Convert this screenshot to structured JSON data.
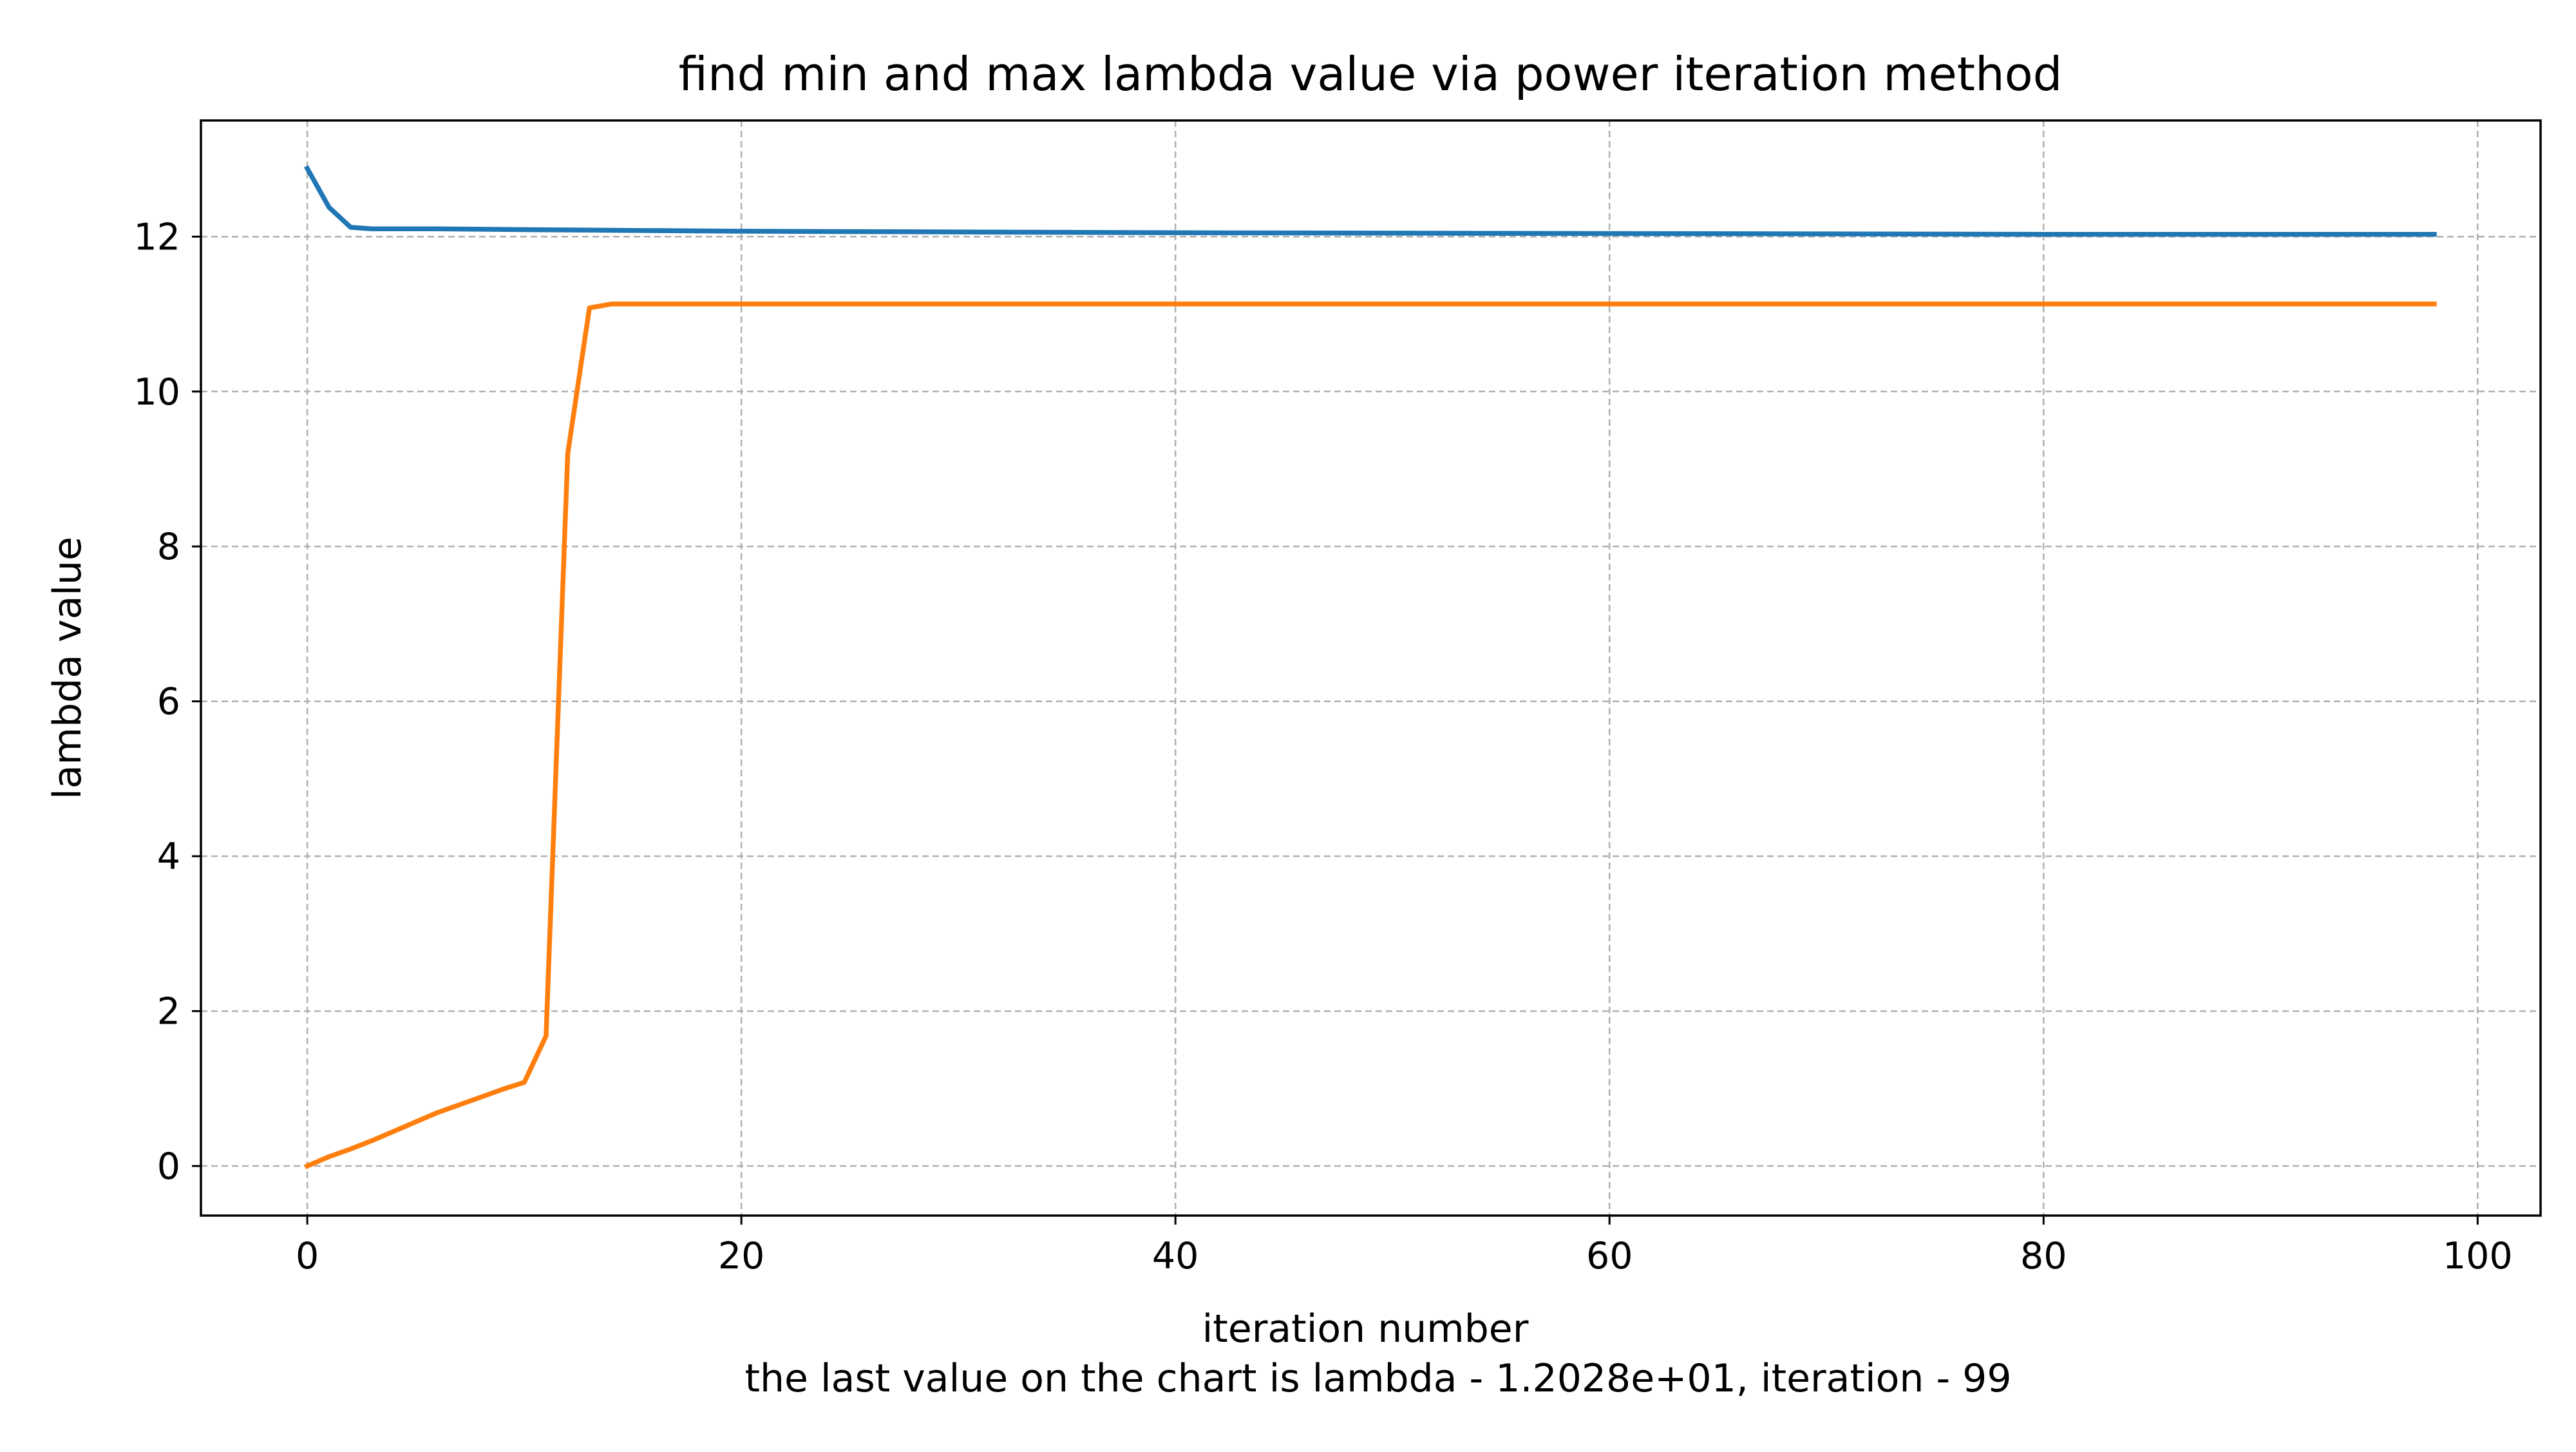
{
  "chart_data": {
    "type": "line",
    "title": "find min and max lambda value via power iteration method",
    "xlabel": "iteration number",
    "subcaption": "the last value on the chart is lambda - 1.2028e+01, iteration - 99",
    "ylabel": "lambda value",
    "xlim": [
      -4.9,
      102.9
    ],
    "ylim": [
      -0.64,
      13.5
    ],
    "x_ticks": [
      0,
      20,
      40,
      60,
      80,
      100
    ],
    "y_ticks": [
      0,
      2,
      4,
      6,
      8,
      10,
      12
    ],
    "grid": true,
    "series": [
      {
        "color": "#1f77b4",
        "x": [
          0,
          1,
          2,
          3,
          4,
          6,
          10,
          20,
          40,
          60,
          80,
          98
        ],
        "values": [
          12.88,
          12.38,
          12.12,
          12.1,
          12.1,
          12.1,
          12.09,
          12.07,
          12.05,
          12.04,
          12.03,
          12.03
        ]
      },
      {
        "color": "#ff7f0e",
        "x": [
          0,
          1,
          2,
          3,
          4,
          5,
          6,
          7,
          8,
          9,
          10,
          11,
          12,
          13,
          14,
          15,
          20,
          40,
          60,
          80,
          98
        ],
        "values": [
          0.0,
          0.12,
          0.22,
          0.33,
          0.45,
          0.57,
          0.69,
          0.79,
          0.89,
          0.99,
          1.08,
          1.68,
          9.2,
          11.08,
          11.13,
          11.13,
          11.13,
          11.13,
          11.13,
          11.13,
          11.13
        ]
      }
    ]
  }
}
